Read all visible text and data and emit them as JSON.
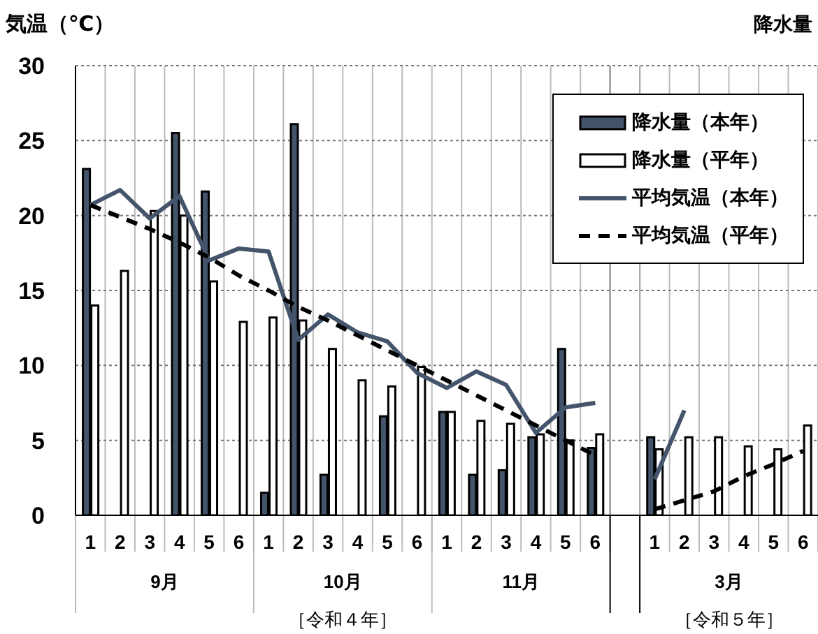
{
  "chart_data": {
    "type": "bar",
    "ylabel": "気温（℃）",
    "categories": [
      "1",
      "2",
      "3",
      "4",
      "5",
      "6",
      "1",
      "2",
      "3",
      "4",
      "5",
      "6",
      "1",
      "2",
      "3",
      "4",
      "5",
      "6",
      null,
      "1",
      "2",
      "3",
      "4",
      "5",
      "6"
    ],
    "series": [
      {
        "name": "降水量（本年）",
        "color": "#44546a",
        "values": [
          23.1,
          null,
          null,
          25.5,
          21.6,
          null,
          1.5,
          26.1,
          2.7,
          null,
          6.6,
          null,
          6.9,
          2.7,
          3.0,
          5.2,
          11.1,
          4.5,
          null,
          5.2,
          null,
          null,
          null,
          null,
          null
        ]
      },
      {
        "name": "降水量（平年）",
        "color": "#ffffff",
        "values": [
          14.0,
          16.3,
          20.3,
          20.0,
          15.6,
          12.9,
          13.2,
          13.0,
          11.1,
          9.0,
          8.6,
          9.9,
          6.9,
          6.3,
          6.1,
          5.4,
          5.0,
          5.4,
          null,
          4.4,
          5.2,
          5.2,
          4.6,
          4.4,
          6.0
        ]
      },
      {
        "type": "line",
        "name": "平均気温（本年）",
        "color": "#44546a",
        "line_style": "solid",
        "values": [
          20.7,
          21.7,
          19.8,
          21.3,
          17.0,
          17.8,
          17.6,
          11.7,
          13.4,
          12.2,
          11.6,
          9.5,
          8.5,
          9.6,
          8.7,
          5.5,
          7.2,
          7.5,
          null,
          2.4,
          7.0,
          null,
          null,
          null,
          null
        ]
      },
      {
        "type": "line",
        "name": "平均気温（平年）",
        "color": "#000000",
        "line_style": "dashed",
        "values": [
          20.7,
          19.9,
          19.1,
          18.2,
          17.2,
          16.0,
          15.0,
          13.9,
          13.0,
          12.0,
          11.0,
          10.0,
          9.0,
          8.0,
          7.0,
          6.0,
          5.0,
          4.0,
          null,
          0.4,
          1.0,
          1.6,
          2.6,
          3.4,
          4.3
        ]
      }
    ],
    "ylim": [
      0,
      30
    ],
    "yticks": [
      0,
      5,
      10,
      15,
      20,
      25,
      30
    ],
    "grid": true,
    "legend": "top right",
    "marker": "none",
    "annotations": [
      "9月",
      "10月",
      "11月",
      "3月",
      "［令和４年］",
      "［令和５年］",
      "降水量"
    ]
  }
}
